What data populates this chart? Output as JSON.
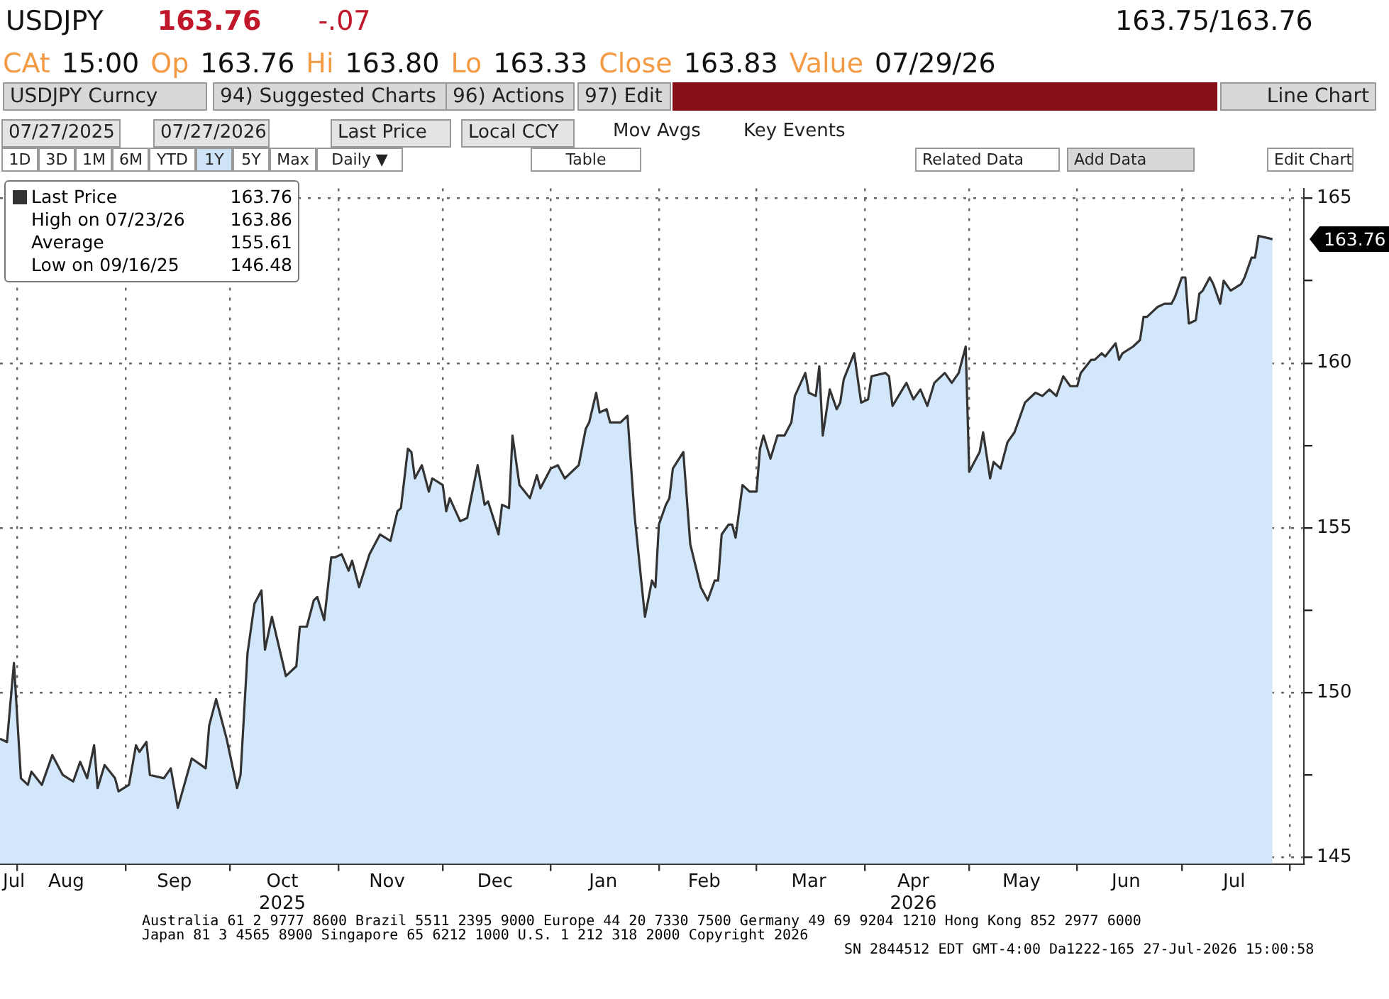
{
  "chart_data": {
    "type": "area",
    "title": "USDJPY",
    "subtitle": "CAt 15:00 Op 163.76 Hi 163.80 Lo 163.33 Close 163.83 Value 07/29/26",
    "legend": "top left",
    "grid": true,
    "marker": "none",
    "line_style": "solid",
    "xlim": [
      "2025-07-27",
      "2026-08-05"
    ],
    "xticks": [
      {
        "value": "2025-07-31",
        "label": "Jul"
      },
      {
        "value": "2025-08-01",
        "label": null
      },
      {
        "value": "2025-08-15",
        "label": "Aug"
      },
      {
        "value": "2025-09-01",
        "label": null
      },
      {
        "value": "2025-09-15",
        "label": "Sep"
      },
      {
        "value": "2025-10-01",
        "label": null
      },
      {
        "value": "2025-10-16",
        "label": "Oct\n2025"
      },
      {
        "value": "2025-11-01",
        "label": null
      },
      {
        "value": "2025-11-15",
        "label": "Nov"
      },
      {
        "value": "2025-12-01",
        "label": null
      },
      {
        "value": "2025-12-16",
        "label": "Dec"
      },
      {
        "value": "2026-01-01",
        "label": null
      },
      {
        "value": "2026-01-16",
        "label": "Jan"
      },
      {
        "value": "2026-02-01",
        "label": null
      },
      {
        "value": "2026-02-14",
        "label": "Feb"
      },
      {
        "value": "2026-03-01",
        "label": null
      },
      {
        "value": "2026-03-16",
        "label": "Mar"
      },
      {
        "value": "2026-04-01",
        "label": null
      },
      {
        "value": "2026-04-15",
        "label": "Apr\n2026"
      },
      {
        "value": "2026-05-01",
        "label": null
      },
      {
        "value": "2026-05-16",
        "label": "May"
      },
      {
        "value": "2026-06-01",
        "label": null
      },
      {
        "value": "2026-06-15",
        "label": "Jun"
      },
      {
        "value": "2026-07-01",
        "label": null
      },
      {
        "value": "2026-07-16",
        "label": "Jul"
      },
      {
        "value": "2026-08-01",
        "label": null
      }
    ],
    "ylim": [
      144.8,
      165.3
    ],
    "yticks": [
      145,
      {
        "value": 147.5,
        "label": null
      },
      150,
      {
        "value": 152.5,
        "label": null
      },
      155,
      {
        "value": 157.5,
        "label": null
      },
      160,
      {
        "value": 162.5,
        "label": null
      },
      165
    ],
    "series": [
      {
        "name": "Last Price",
        "color": "#333333",
        "x": [
          "2025-07-27",
          "2025-07-29",
          "2025-07-31",
          "2025-08-02",
          "2025-08-04",
          "2025-08-05",
          "2025-08-08",
          "2025-08-11",
          "2025-08-14",
          "2025-08-17",
          "2025-08-19",
          "2025-08-21",
          "2025-08-23",
          "2025-08-24",
          "2025-08-26",
          "2025-08-29",
          "2025-08-30",
          "2025-09-02",
          "2025-09-04",
          "2025-09-05",
          "2025-09-07",
          "2025-09-08",
          "2025-09-12",
          "2025-09-14",
          "2025-09-16",
          "2025-09-20",
          "2025-09-24",
          "2025-09-25",
          "2025-09-27",
          "2025-09-30",
          "2025-10-03",
          "2025-10-04",
          "2025-10-06",
          "2025-10-08",
          "2025-10-10",
          "2025-10-11",
          "2025-10-13",
          "2025-10-17",
          "2025-10-20",
          "2025-10-21",
          "2025-10-23",
          "2025-10-25",
          "2025-10-26",
          "2025-10-28",
          "2025-10-30",
          "2025-10-31",
          "2025-11-02",
          "2025-11-04",
          "2025-11-05",
          "2025-11-07",
          "2025-11-10",
          "2025-11-13",
          "2025-11-16",
          "2025-11-18",
          "2025-11-19",
          "2025-11-21",
          "2025-11-22",
          "2025-11-23",
          "2025-11-25",
          "2025-11-27",
          "2025-11-28",
          "2025-12-01",
          "2025-12-02",
          "2025-12-03",
          "2025-12-06",
          "2025-12-08",
          "2025-12-11",
          "2025-12-13",
          "2025-12-14",
          "2025-12-17",
          "2025-12-18",
          "2025-12-20",
          "2025-12-21",
          "2025-12-23",
          "2025-12-26",
          "2025-12-28",
          "2025-12-29",
          "2026-01-01",
          "2026-01-03",
          "2026-01-05",
          "2026-01-09",
          "2026-01-11",
          "2026-01-12",
          "2026-01-14",
          "2026-01-15",
          "2026-01-17",
          "2026-01-18",
          "2026-01-21",
          "2026-01-23",
          "2026-01-25",
          "2026-01-28",
          "2026-01-30",
          "2026-01-31",
          "2026-02-01",
          "2026-02-03",
          "2026-02-04",
          "2026-02-05",
          "2026-02-08",
          "2026-02-10",
          "2026-02-13",
          "2026-02-15",
          "2026-02-17",
          "2026-02-18",
          "2026-02-19",
          "2026-02-21",
          "2026-02-22",
          "2026-02-23",
          "2026-02-25",
          "2026-02-27",
          "2026-03-01",
          "2026-03-02",
          "2026-03-03",
          "2026-03-05",
          "2026-03-07",
          "2026-03-09",
          "2026-03-11",
          "2026-03-12",
          "2026-03-15",
          "2026-03-16",
          "2026-03-18",
          "2026-03-19",
          "2026-03-20",
          "2026-03-22",
          "2026-03-24",
          "2026-03-25",
          "2026-03-26",
          "2026-03-29",
          "2026-03-31",
          "2026-04-02",
          "2026-04-03",
          "2026-04-07",
          "2026-04-08",
          "2026-04-09",
          "2026-04-13",
          "2026-04-15",
          "2026-04-17",
          "2026-04-19",
          "2026-04-21",
          "2026-04-24",
          "2026-04-26",
          "2026-04-28",
          "2026-04-30",
          "2026-05-01",
          "2026-05-04",
          "2026-05-05",
          "2026-05-07",
          "2026-05-08",
          "2026-05-10",
          "2026-05-12",
          "2026-05-14",
          "2026-05-17",
          "2026-05-20",
          "2026-05-22",
          "2026-05-24",
          "2026-05-26",
          "2026-05-28",
          "2026-05-30",
          "2026-06-01",
          "2026-06-02",
          "2026-06-05",
          "2026-06-06",
          "2026-06-08",
          "2026-06-09",
          "2026-06-12",
          "2026-06-13",
          "2026-06-14",
          "2026-06-17",
          "2026-06-19",
          "2026-06-20",
          "2026-06-21",
          "2026-06-23",
          "2026-06-24",
          "2026-06-26",
          "2026-06-28",
          "2026-06-29",
          "2026-07-01",
          "2026-07-02",
          "2026-07-03",
          "2026-07-05",
          "2026-07-06",
          "2026-07-07",
          "2026-07-09",
          "2026-07-10",
          "2026-07-12",
          "2026-07-13",
          "2026-07-15",
          "2026-07-18",
          "2026-07-19",
          "2026-07-21",
          "2026-07-22",
          "2026-07-23",
          "2026-07-27"
        ],
        "values": [
          148.6,
          148.5,
          150.9,
          147.4,
          147.2,
          147.6,
          147.2,
          148.1,
          147.5,
          147.3,
          147.9,
          147.4,
          148.4,
          147.1,
          147.8,
          147.4,
          147.0,
          147.2,
          148.4,
          148.2,
          148.5,
          147.5,
          147.4,
          147.7,
          146.5,
          148.0,
          147.7,
          149.0,
          149.8,
          148.6,
          147.1,
          147.5,
          151.2,
          152.7,
          153.1,
          151.3,
          152.3,
          150.5,
          150.8,
          152.0,
          152.0,
          152.8,
          152.9,
          152.2,
          154.1,
          154.1,
          154.2,
          153.7,
          154.0,
          153.2,
          154.2,
          154.8,
          154.6,
          155.5,
          155.6,
          157.4,
          157.3,
          156.5,
          156.9,
          156.1,
          156.5,
          156.3,
          155.5,
          155.9,
          155.2,
          155.3,
          156.9,
          155.7,
          155.8,
          154.8,
          155.7,
          155.6,
          157.8,
          156.3,
          155.9,
          156.6,
          156.2,
          156.8,
          156.9,
          156.5,
          156.9,
          158.0,
          158.2,
          159.1,
          158.5,
          158.6,
          158.2,
          158.2,
          158.4,
          155.4,
          152.3,
          153.4,
          153.2,
          155.1,
          155.7,
          155.9,
          156.8,
          157.3,
          154.5,
          153.2,
          152.8,
          153.4,
          153.4,
          154.8,
          155.1,
          155.1,
          154.7,
          156.3,
          156.1,
          156.1,
          157.4,
          157.8,
          157.1,
          157.8,
          157.8,
          158.2,
          159.0,
          159.7,
          159.1,
          159.0,
          159.9,
          157.8,
          159.2,
          158.6,
          158.8,
          159.5,
          160.3,
          158.8,
          158.9,
          159.6,
          159.7,
          159.6,
          158.7,
          159.4,
          158.9,
          159.2,
          158.7,
          159.4,
          159.7,
          159.4,
          159.7,
          160.5,
          156.7,
          157.3,
          157.9,
          156.5,
          157.0,
          156.8,
          157.6,
          157.9,
          158.8,
          159.1,
          159.0,
          159.2,
          159.0,
          159.6,
          159.3,
          159.3,
          159.7,
          160.1,
          160.1,
          160.3,
          160.2,
          160.6,
          160.1,
          160.3,
          160.5,
          160.7,
          161.4,
          161.4,
          161.6,
          161.7,
          161.8,
          161.8,
          162.0,
          162.6,
          162.6,
          161.2,
          161.3,
          162.1,
          162.2,
          162.6,
          162.4,
          161.8,
          162.5,
          162.2,
          162.4,
          162.6,
          163.2,
          163.2,
          163.86,
          163.76
        ]
      }
    ],
    "annotations": [
      "163.76",
      "High on 07/23/26 163.86",
      "Average 155.61",
      "Low on 09/16/25 146.48",
      {
        "text": "163.76",
        "x": "2026-07-27",
        "y": 163.76
      },
      "163.76",
      "-.07",
      "163.75/163.76",
      "USDJPY Curncy",
      "94) Suggested Charts",
      "96) Actions",
      "97) Edit",
      "Line Chart",
      "07/27/2025",
      "07/27/2026",
      "Last Price",
      "Local CCY",
      "Mov Avgs",
      "Key Events",
      "1D",
      "3D",
      "1M",
      "6M",
      "YTD",
      "1Y",
      "5Y",
      "Max",
      "Daily ▼",
      "Table",
      "Related Data",
      "Add Data",
      "Edit Chart",
      "Australia 61 2 9777 8600 Brazil 5511 2395 9000 Europe 44 20 7330 7500 Germany 49 69 9204 1210 Hong Kong 852 2977 6000",
      "Japan 81 3 4565 8900 Singapore 65 6212 1000 U.S. 1 212 318 2000 Copyright 2026",
      "SN 2844512 EDT GMT-4:00 Da1222-165 27-Jul-2026 15:00:58"
    ]
  }
}
